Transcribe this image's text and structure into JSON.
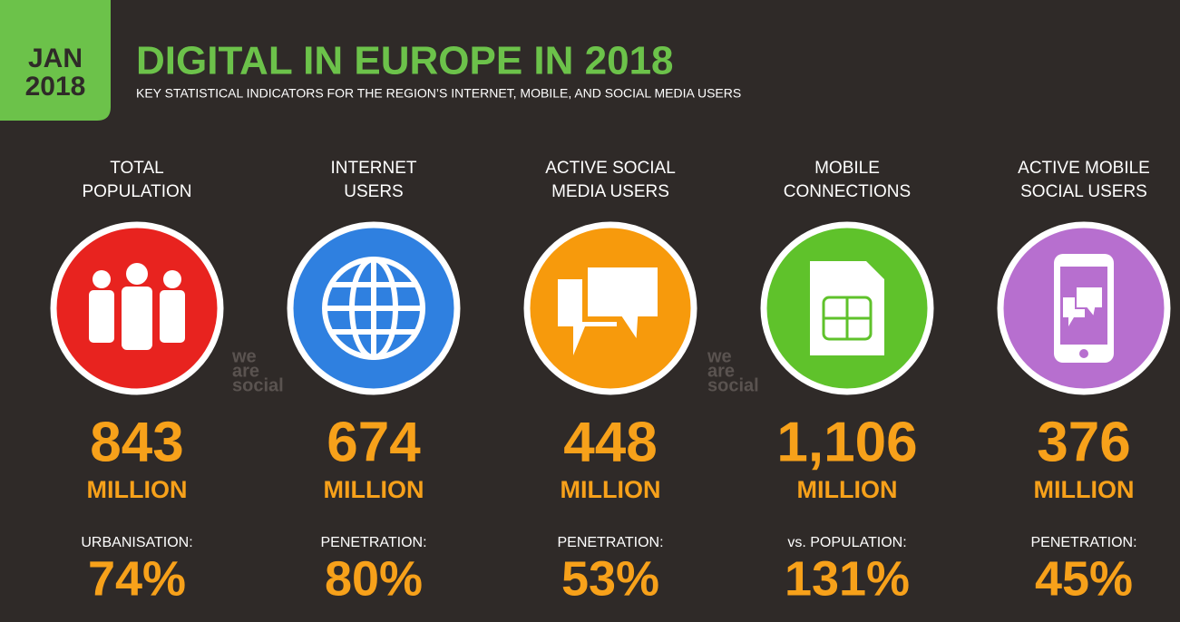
{
  "header": {
    "badge": [
      "JAN",
      "2018"
    ],
    "title": "DIGITAL IN EUROPE IN 2018",
    "subtitle": "KEY STATISTICAL INDICATORS FOR THE REGION’S INTERNET, MOBILE, AND SOCIAL MEDIA USERS"
  },
  "watermark": [
    "we",
    "are",
    "social"
  ],
  "columns": [
    {
      "label": [
        "TOTAL",
        "POPULATION"
      ],
      "value": "843",
      "unit": "MILLION",
      "stat_label": "URBANISATION:",
      "stat_value": "74%"
    },
    {
      "label": [
        "INTERNET",
        "USERS"
      ],
      "value": "674",
      "unit": "MILLION",
      "stat_label": "PENETRATION:",
      "stat_value": "80%"
    },
    {
      "label": [
        "ACTIVE SOCIAL",
        "MEDIA USERS"
      ],
      "value": "448",
      "unit": "MILLION",
      "stat_label": "PENETRATION:",
      "stat_value": "53%"
    },
    {
      "label": [
        "MOBILE",
        "CONNECTIONS"
      ],
      "value": "1,106",
      "unit": "MILLION",
      "stat_label": "vs. POPULATION:",
      "stat_value": "131%"
    },
    {
      "label": [
        "ACTIVE MOBILE",
        "SOCIAL USERS"
      ],
      "value": "376",
      "unit": "MILLION",
      "stat_label": "PENETRATION:",
      "stat_value": "45%"
    }
  ]
}
